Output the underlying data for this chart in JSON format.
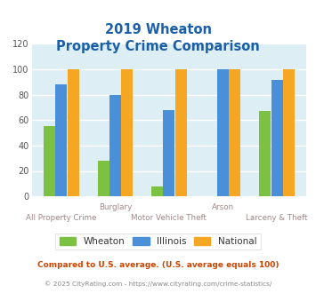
{
  "title_line1": "2019 Wheaton",
  "title_line2": "Property Crime Comparison",
  "categories": [
    "All Property Crime",
    "Burglary",
    "Motor Vehicle Theft",
    "Arson",
    "Larceny & Theft"
  ],
  "series": {
    "Wheaton": [
      55,
      28,
      8,
      0,
      67
    ],
    "Illinois": [
      88,
      80,
      68,
      100,
      92
    ],
    "National": [
      100,
      100,
      100,
      100,
      100
    ]
  },
  "colors": {
    "Wheaton": "#7dc142",
    "Illinois": "#4a90d9",
    "National": "#f5a623"
  },
  "ylim": [
    0,
    120
  ],
  "yticks": [
    0,
    20,
    40,
    60,
    80,
    100,
    120
  ],
  "plot_bg": "#ddeef5",
  "grid_color": "#ffffff",
  "xlabel_color_upper": "#a08888",
  "xlabel_color_lower": "#a08888",
  "title_color": "#1a5fa8",
  "legend_text_color": "#333333",
  "footnote1": "Compared to U.S. average. (U.S. average equals 100)",
  "footnote2": "© 2025 CityRating.com - https://www.cityrating.com/crime-statistics/",
  "footnote1_color": "#cc4400",
  "footnote2_color": "#888888",
  "bar_width": 0.22
}
